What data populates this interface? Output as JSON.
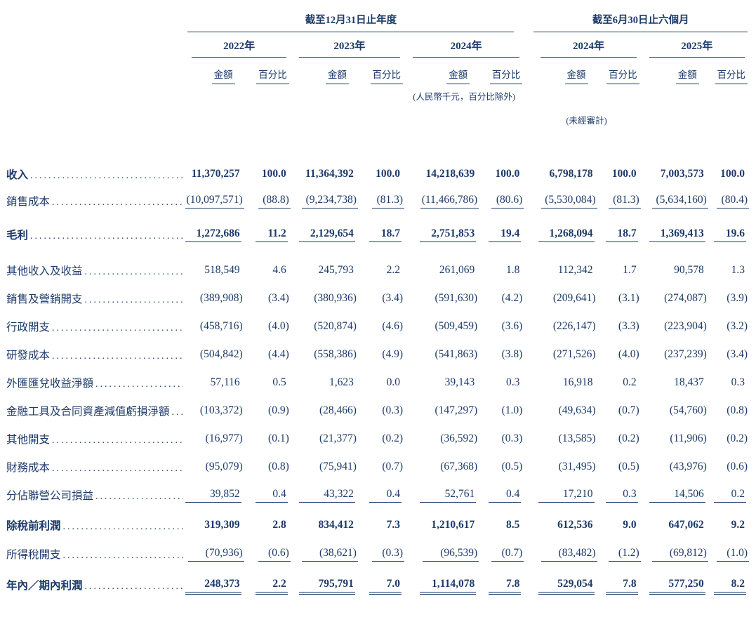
{
  "colors": {
    "ink": "#1c3a6a"
  },
  "table": {
    "period_headers": [
      {
        "label": "截至12月31日止年度"
      },
      {
        "label": "截至6月30日止六個月"
      }
    ],
    "year_headers": [
      "2022年",
      "2023年",
      "2024年",
      "2024年",
      "2025年"
    ],
    "col_headers": {
      "amount": "金額",
      "percent": "百分比"
    },
    "notes": {
      "currency": "(人民幣千元，百分比除外)",
      "unaudited": "(未經審計)"
    },
    "rows": [
      {
        "label": "收入",
        "bold": true,
        "underline": "none",
        "values": [
          "11,370,257",
          "100.0",
          "11,364,392",
          "100.0",
          "14,218,639",
          "100.0",
          "6,798,178",
          "100.0",
          "7,003,573",
          "100.0"
        ]
      },
      {
        "label": "銷售成本",
        "bold": false,
        "underline": "single",
        "values": [
          "(10,097,571)",
          "(88.8)",
          "(9,234,738)",
          "(81.3)",
          "(11,466,786)",
          "(80.6)",
          "(5,530,084)",
          "(81.3)",
          "(5,634,160)",
          "(80.4)"
        ]
      },
      {
        "label": "毛利",
        "bold": true,
        "underline": "single",
        "values": [
          "1,272,686",
          "11.2",
          "2,129,654",
          "18.7",
          "2,751,853",
          "19.4",
          "1,268,094",
          "18.7",
          "1,369,413",
          "19.6"
        ]
      },
      {
        "label": "其他收入及收益",
        "bold": false,
        "underline": "none",
        "values": [
          "518,549",
          "4.6",
          "245,793",
          "2.2",
          "261,069",
          "1.8",
          "112,342",
          "1.7",
          "90,578",
          "1.3"
        ]
      },
      {
        "label": "銷售及營銷開支",
        "bold": false,
        "underline": "none",
        "values": [
          "(389,908)",
          "(3.4)",
          "(380,936)",
          "(3.4)",
          "(591,630)",
          "(4.2)",
          "(209,641)",
          "(3.1)",
          "(274,087)",
          "(3.9)"
        ]
      },
      {
        "label": "行政開支",
        "bold": false,
        "underline": "none",
        "values": [
          "(458,716)",
          "(4.0)",
          "(520,874)",
          "(4.6)",
          "(509,459)",
          "(3.6)",
          "(226,147)",
          "(3.3)",
          "(223,904)",
          "(3.2)"
        ]
      },
      {
        "label": "研發成本",
        "bold": false,
        "underline": "none",
        "values": [
          "(504,842)",
          "(4.4)",
          "(558,386)",
          "(4.9)",
          "(541,863)",
          "(3.8)",
          "(271,526)",
          "(4.0)",
          "(237,239)",
          "(3.4)"
        ]
      },
      {
        "label": "外匯匯兌收益淨額",
        "bold": false,
        "underline": "none",
        "values": [
          "57,116",
          "0.5",
          "1,623",
          "0.0",
          "39,143",
          "0.3",
          "16,918",
          "0.2",
          "18,437",
          "0.3"
        ]
      },
      {
        "label": "金融工具及合同資產減值虧損淨額",
        "bold": false,
        "underline": "none",
        "values": [
          "(103,372)",
          "(0.9)",
          "(28,466)",
          "(0.3)",
          "(147,297)",
          "(1.0)",
          "(49,634)",
          "(0.7)",
          "(54,760)",
          "(0.8)"
        ]
      },
      {
        "label": "其他開支",
        "bold": false,
        "underline": "none",
        "values": [
          "(16,977)",
          "(0.1)",
          "(21,377)",
          "(0.2)",
          "(36,592)",
          "(0.3)",
          "(13,585)",
          "(0.2)",
          "(11,906)",
          "(0.2)"
        ]
      },
      {
        "label": "財務成本",
        "bold": false,
        "underline": "none",
        "values": [
          "(95,079)",
          "(0.8)",
          "(75,941)",
          "(0.7)",
          "(67,368)",
          "(0.5)",
          "(31,495)",
          "(0.5)",
          "(43,976)",
          "(0.6)"
        ]
      },
      {
        "label": "分佔聯營公司損益",
        "bold": false,
        "underline": "single",
        "values": [
          "39,852",
          "0.4",
          "43,322",
          "0.4",
          "52,761",
          "0.4",
          "17,210",
          "0.3",
          "14,506",
          "0.2"
        ]
      },
      {
        "label": "除稅前利潤",
        "bold": true,
        "underline": "none",
        "values": [
          "319,309",
          "2.8",
          "834,412",
          "7.3",
          "1,210,617",
          "8.5",
          "612,536",
          "9.0",
          "647,062",
          "9.2"
        ]
      },
      {
        "label": "所得稅開支",
        "bold": false,
        "underline": "single",
        "values": [
          "(70,936)",
          "(0.6)",
          "(38,621)",
          "(0.3)",
          "(96,539)",
          "(0.7)",
          "(83,482)",
          "(1.2)",
          "(69,812)",
          "(1.0)"
        ]
      },
      {
        "label": "年內／期內利潤",
        "bold": true,
        "underline": "double",
        "values": [
          "248,373",
          "2.2",
          "795,791",
          "7.0",
          "1,114,078",
          "7.8",
          "529,054",
          "7.8",
          "577,250",
          "8.2"
        ]
      }
    ]
  }
}
